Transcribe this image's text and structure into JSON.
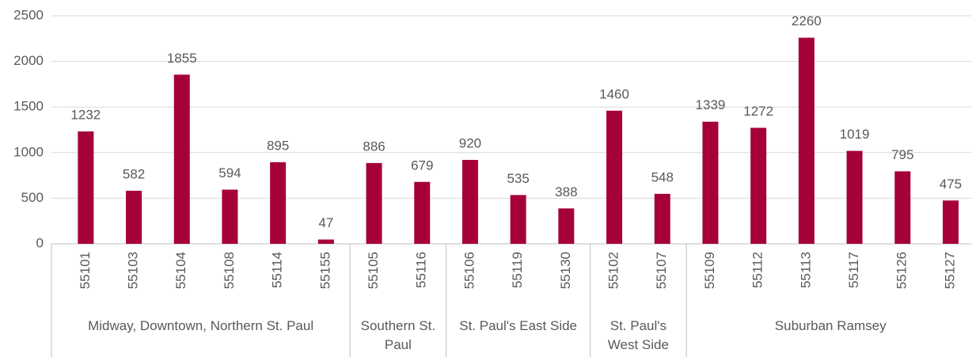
{
  "chart_data": {
    "type": "bar",
    "color": "#a5003a",
    "ylim": [
      0,
      2500
    ],
    "yticks": [
      0,
      500,
      1000,
      1500,
      2000,
      2500
    ],
    "grid": true,
    "groups": [
      {
        "name": "Midway, Downtown, Northern St. Paul",
        "categories": [
          "55101",
          "55103",
          "55104",
          "55108",
          "55114",
          "55155"
        ],
        "values": [
          1232,
          582,
          1855,
          594,
          895,
          47
        ]
      },
      {
        "name": "Southern St. Paul",
        "categories": [
          "55105",
          "55116"
        ],
        "values": [
          886,
          679
        ]
      },
      {
        "name": "St. Paul's East Side",
        "categories": [
          "55106",
          "55119",
          "55130"
        ],
        "values": [
          920,
          535,
          388
        ]
      },
      {
        "name": "St. Paul's West Side",
        "categories": [
          "55102",
          "55107"
        ],
        "values": [
          1460,
          548
        ]
      },
      {
        "name": "Suburban Ramsey",
        "categories": [
          "55109",
          "55112",
          "55113",
          "55117",
          "55126",
          "55127"
        ],
        "values": [
          1339,
          1272,
          2260,
          1019,
          795,
          475
        ]
      }
    ]
  }
}
